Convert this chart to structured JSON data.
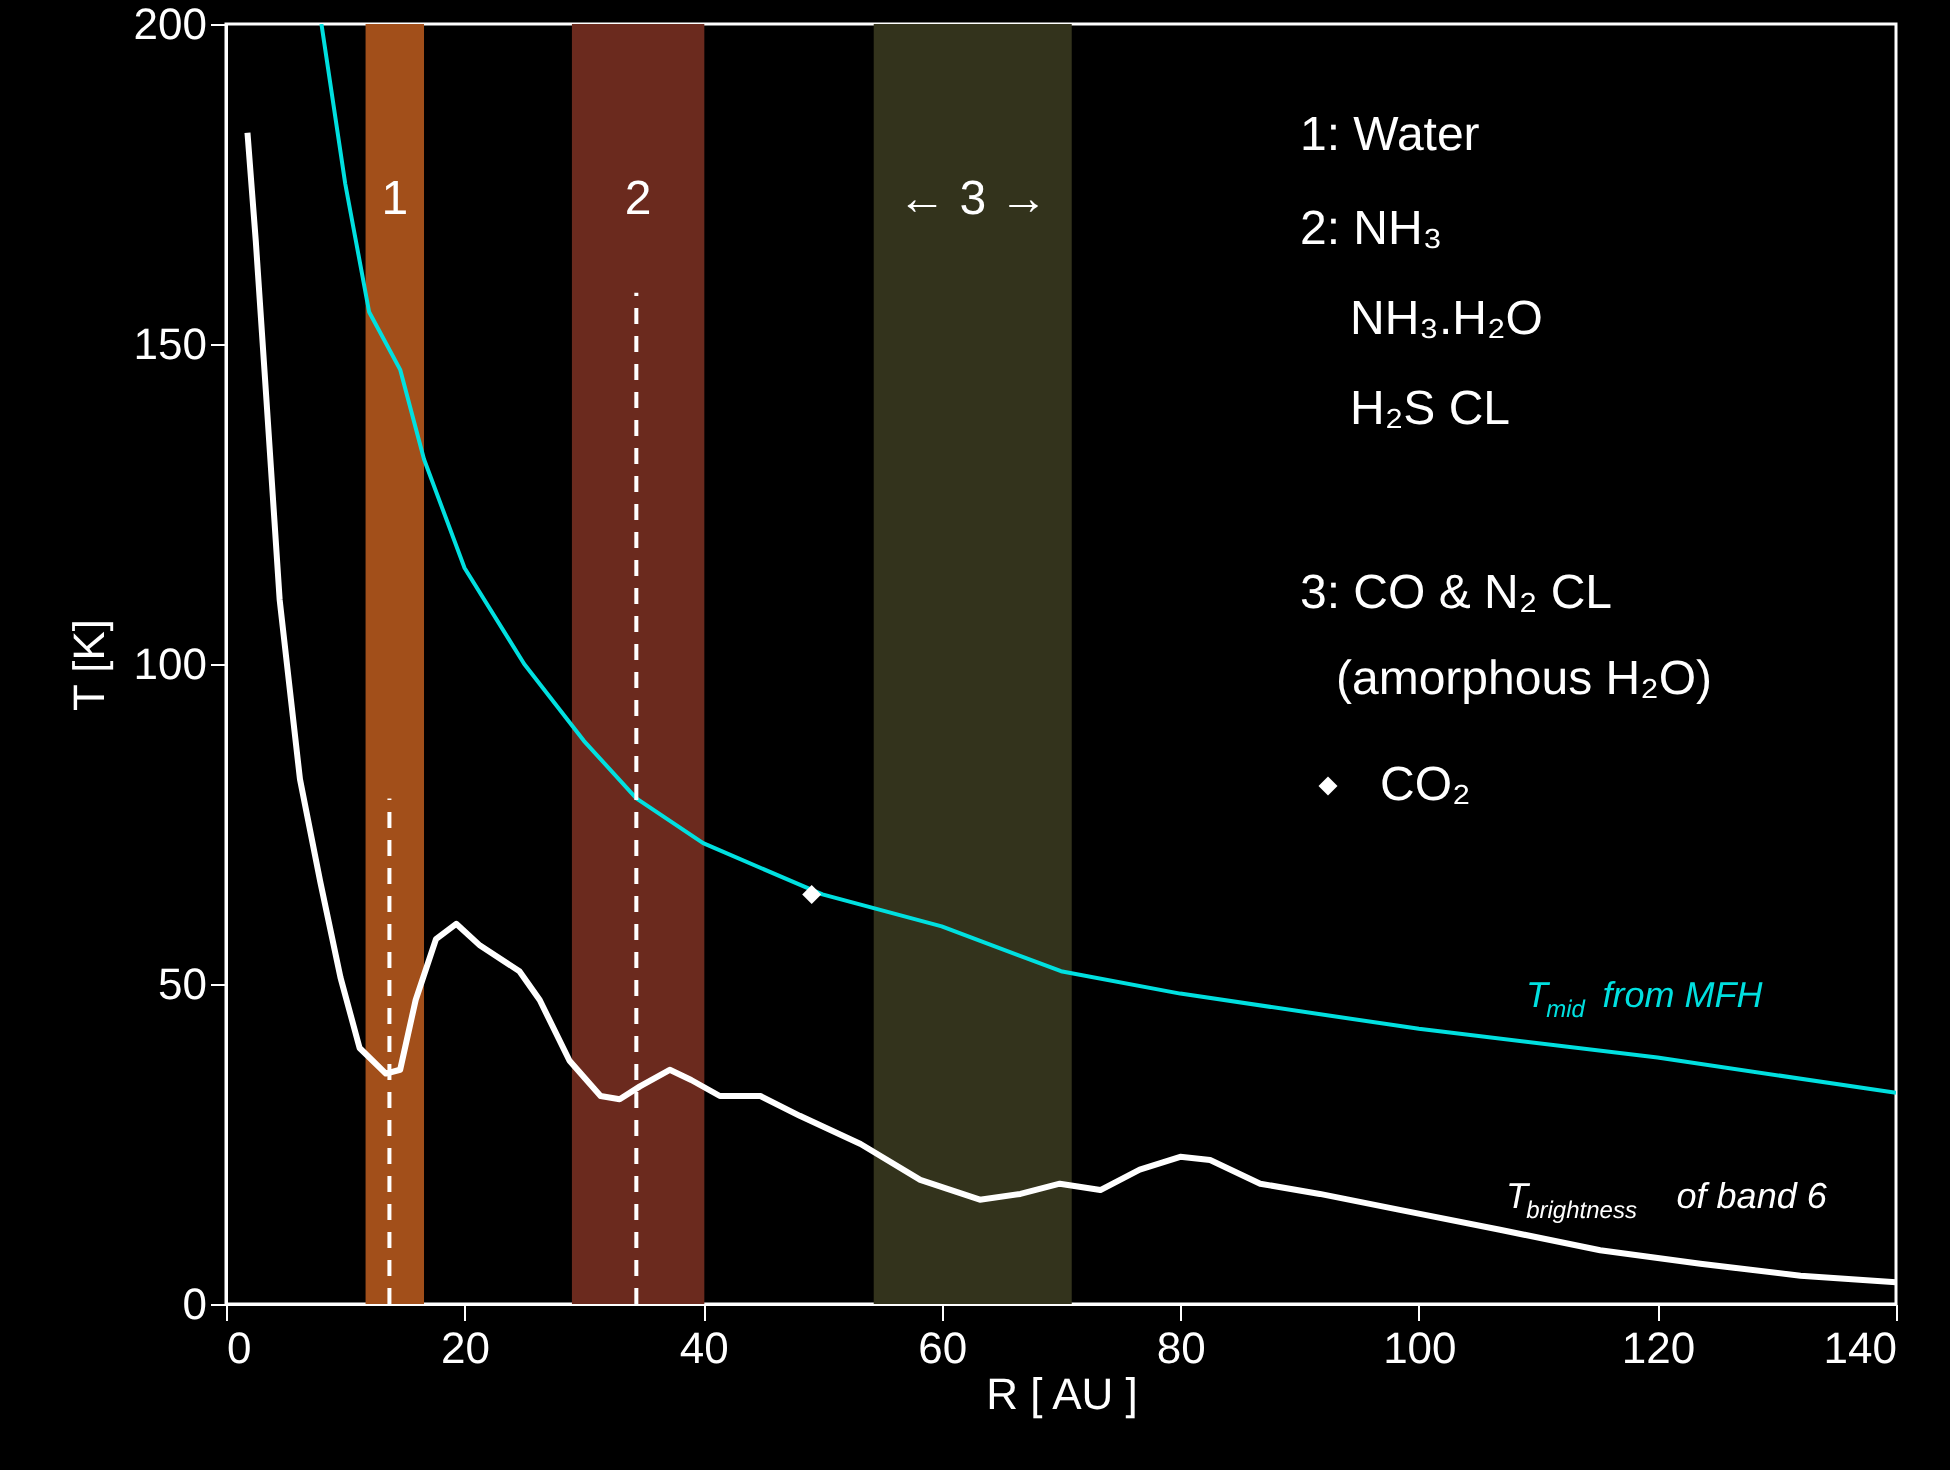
{
  "chart_data": {
    "type": "line",
    "xlabel": "R [ AU ]",
    "ylabel": "T [K]",
    "xlim": [
      0,
      140
    ],
    "xticks": [
      0,
      20,
      40,
      60,
      80,
      100,
      120,
      140
    ],
    "ylim": [
      0,
      200
    ],
    "yticks": [
      0,
      50,
      100,
      150,
      200
    ],
    "grid": false,
    "legend": "right",
    "series": [
      {
        "name": "T$_{mid}$ from MFH",
        "color": "#00e0e0",
        "line_style": "solid",
        "x": [
          8,
          10,
          12,
          14.6,
          16.6,
          20,
          25,
          30,
          34.4,
          40,
          50,
          60,
          70,
          80,
          100,
          120,
          140
        ],
        "values": [
          200,
          175,
          155,
          146,
          132,
          115,
          100,
          88,
          79,
          72,
          64,
          59,
          52,
          48.5,
          43,
          38.5,
          33
        ]
      },
      {
        "name": "T$_{brightness}$ of band 6",
        "color": "#ffffff",
        "line_style": "solid",
        "x": [
          1.8,
          2.5,
          3.4,
          4.5,
          6.2,
          7.9,
          9.6,
          11.2,
          13.4,
          14.6,
          15.9,
          17.6,
          19.3,
          21.3,
          24.6,
          26.3,
          28.8,
          31.4,
          33,
          34.7,
          37.2,
          39,
          41.4,
          44.8,
          48.1,
          53.2,
          58.2,
          63.2,
          66.6,
          69.9,
          73.3,
          76.6,
          80,
          82.5,
          86.7,
          91.7,
          98.4,
          106.8,
          115.2,
          123.6,
          132,
          140
        ],
        "values": [
          183,
          166,
          141,
          110,
          82,
          66,
          51,
          40,
          36,
          36.6,
          47.5,
          57,
          59.4,
          56,
          52,
          47.5,
          38,
          32.5,
          32,
          34,
          36.6,
          35,
          32.5,
          32.5,
          29.4,
          25,
          19.4,
          16.3,
          17.2,
          18.8,
          17.8,
          21,
          23,
          22.5,
          18.8,
          17.2,
          14.7,
          11.6,
          8.4,
          6.3,
          4.4,
          3.4
        ]
      },
      {
        "color": "#ffffff",
        "line_style": "dashed",
        "x": [
          13.7,
          13.7
        ],
        "values": [
          0,
          79
        ]
      },
      {
        "color": "#ffffff",
        "line_style": "dashed",
        "x": [
          34.4,
          34.4
        ],
        "values": [
          0,
          158
        ]
      },
      {
        "name": "CO₂",
        "type": "scatter",
        "marker": "diamond",
        "color": "#ffffff",
        "x": [
          49.1
        ],
        "values": [
          64
        ]
      }
    ],
    "bands": [
      {
        "axis": "x",
        "from": 11.7,
        "to": 16.6,
        "label": "1",
        "color": "#a24f1a"
      },
      {
        "axis": "x",
        "from": 29.0,
        "to": 40.1,
        "label": "2",
        "color": "#6b2a1e"
      },
      {
        "axis": "x",
        "from": 54.3,
        "to": 70.9,
        "label": "← 3 →",
        "color": "#33331c"
      }
    ],
    "annotations": [
      "1: Water",
      "2: NH₃",
      "NH₃.H₂O",
      "H₂S CL",
      "3: CO & N₂ CL",
      "(amorphous H₂O)"
    ]
  }
}
